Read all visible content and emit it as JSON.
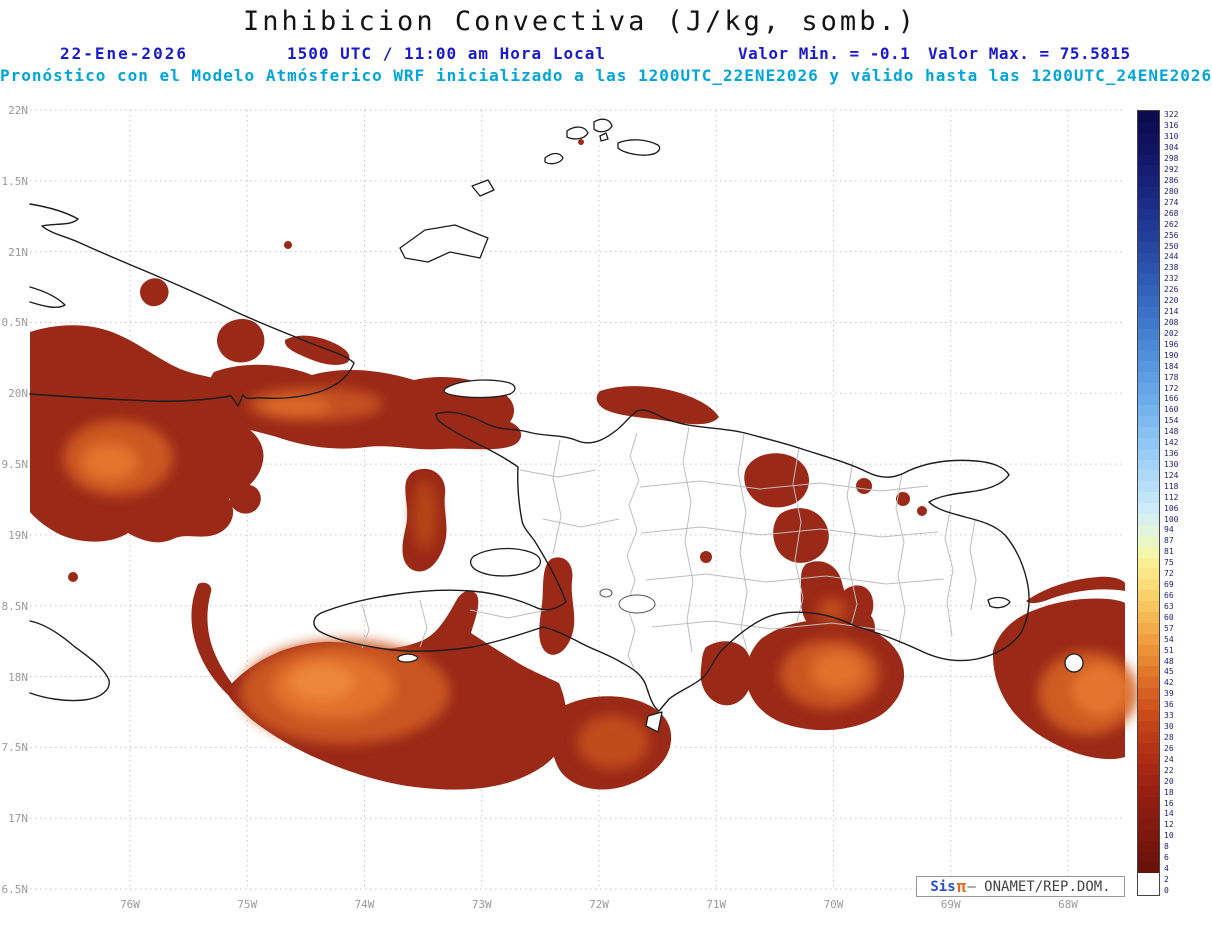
{
  "title": "Inhibicion Convectiva (J/kg, somb.)",
  "header": {
    "date": "22-Ene-2026",
    "valid": "1500 UTC / 11:00 am Hora Local",
    "min": "Valor Min. = -0.1",
    "max": "Valor Max. = 75.5815",
    "forecast": "Pronóstico con el Modelo Atmósferico WRF inicializado a las 1200UTC_22ENE2026 y válido hasta las  1200UTC_24ENE2026"
  },
  "axes": {
    "lat": [
      "22N",
      "1.5N",
      "21N",
      "0.5N",
      "20N",
      "9.5N",
      "19N",
      "8.5N",
      "18N",
      "7.5N",
      "17N",
      "6.5N"
    ],
    "lon": [
      "76W",
      "75W",
      "74W",
      "73W",
      "72W",
      "71W",
      "70W",
      "69W",
      "68W"
    ]
  },
  "colorbar": {
    "labels": [
      "322",
      "316",
      "310",
      "304",
      "298",
      "292",
      "286",
      "280",
      "274",
      "268",
      "262",
      "256",
      "250",
      "244",
      "238",
      "232",
      "226",
      "220",
      "214",
      "208",
      "202",
      "196",
      "190",
      "184",
      "178",
      "172",
      "166",
      "160",
      "154",
      "148",
      "142",
      "136",
      "130",
      "124",
      "118",
      "112",
      "106",
      "100",
      "94",
      "87",
      "81",
      "75",
      "72",
      "69",
      "66",
      "63",
      "60",
      "57",
      "54",
      "51",
      "48",
      "45",
      "42",
      "39",
      "36",
      "33",
      "30",
      "28",
      "26",
      "24",
      "22",
      "20",
      "18",
      "16",
      "14",
      "12",
      "10",
      "8",
      "6",
      "4",
      "2",
      "0"
    ],
    "colors": [
      "#0b0b4e",
      "#0d0e55",
      "#0f115c",
      "#111463",
      "#13186a",
      "#151d71",
      "#172278",
      "#19277f",
      "#1b2d86",
      "#1e338d",
      "#203994",
      "#234099",
      "#2646a0",
      "#294da7",
      "#2c54ae",
      "#2f5bb4",
      "#3362ba",
      "#376ac0",
      "#3b71c6",
      "#4079cc",
      "#4580d1",
      "#4b88d6",
      "#518fdb",
      "#5797df",
      "#5e9ee3",
      "#65a5e7",
      "#6dacea",
      "#75b3ed",
      "#7ebaf0",
      "#87c1f3",
      "#90c7f5",
      "#9acdf6",
      "#a4d3f7",
      "#aed9f8",
      "#b8dff8",
      "#c2e5f8",
      "#cdebf8",
      "#d8f1ef",
      "#e0f5db",
      "#eaf7c5",
      "#f3f6ad",
      "#f9ef95",
      "#fae686",
      "#fadc78",
      "#f9d16b",
      "#f7c55f",
      "#f5b954",
      "#f2ac4a",
      "#ef9f41",
      "#eb9239",
      "#e68532",
      "#e1782c",
      "#dc6c27",
      "#d66023",
      "#d0551f",
      "#c94b1c",
      "#c2421a",
      "#bb3a18",
      "#b43316",
      "#ad2d15",
      "#a62814",
      "#9f2413",
      "#982012",
      "#911d11",
      "#8a1b10",
      "#831a0f",
      "#7c180e",
      "#75160d",
      "#6f140c",
      "#691208",
      "#ffffff",
      "#ffffff"
    ]
  },
  "branding": {
    "sis": "Sis",
    "pi": "π",
    "separator": "–",
    "org": "ONAMET/REP.DOM."
  },
  "palette": {
    "header_blue": "#1a1ace",
    "header_cyan": "#00a6da",
    "shade_base": "#9a2917",
    "shade_mid": "#cc5822",
    "shade_high": "#e8772f",
    "grid": "#c6c6c6",
    "axis_text": "#9a9a9a",
    "coast": "#1c1c1c",
    "admin": "#bdbdbd"
  }
}
